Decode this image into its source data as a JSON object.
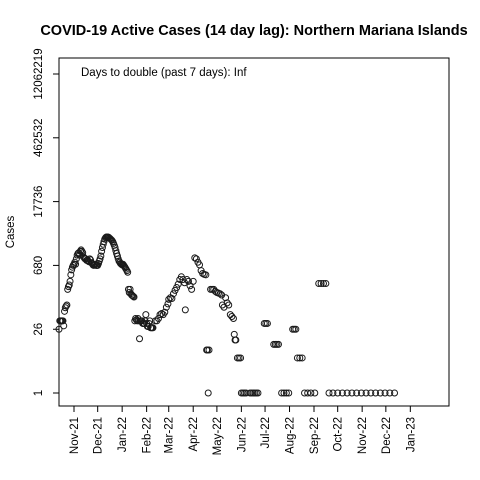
{
  "chart_data": {
    "type": "scatter",
    "title": "COVID-19 Active Cases (14 day lag): Northern Mariana Islands",
    "ylabel": "Cases",
    "xlabel": "",
    "y_scale": "log",
    "annotation": "Days to double (past 7 days): Inf",
    "y_ticks": [
      "1",
      "26",
      "680",
      "17736",
      "462532",
      "12062219"
    ],
    "y_tick_values": [
      1,
      26,
      680,
      17736,
      462532,
      12062219
    ],
    "x_ticks": [
      "Nov-21",
      "Dec-21",
      "Jan-22",
      "Feb-22",
      "Mar-22",
      "Apr-22",
      "May-22",
      "Jun-22",
      "Jul-22",
      "Aug-22",
      "Sep-22",
      "Oct-22",
      "Nov-22",
      "Dec-22",
      "Jan-23"
    ],
    "x_tick_dates": [
      "2021-11-01",
      "2021-12-01",
      "2022-01-01",
      "2022-02-01",
      "2022-03-01",
      "2022-04-01",
      "2022-05-01",
      "2022-06-01",
      "2022-07-01",
      "2022-08-01",
      "2022-09-01",
      "2022-10-01",
      "2022-11-01",
      "2022-12-01",
      "2023-01-01"
    ],
    "xlim": [
      "2021-10-13",
      "2023-02-19"
    ],
    "ylim": [
      1,
      12062219
    ],
    "grid": false,
    "legend": "none",
    "series": [
      {
        "points": [
          [
            "2021-10-13",
            26
          ],
          [
            "2021-10-14",
            40
          ],
          [
            "2021-10-15",
            40
          ],
          [
            "2021-10-16",
            40
          ],
          [
            "2021-10-17",
            40
          ],
          [
            "2021-10-18",
            40
          ],
          [
            "2021-10-19",
            31
          ],
          [
            "2021-10-20",
            65
          ],
          [
            "2021-10-21",
            78
          ],
          [
            "2021-10-22",
            85
          ],
          [
            "2021-10-23",
            90
          ],
          [
            "2021-10-24",
            200
          ],
          [
            "2021-10-25",
            230
          ],
          [
            "2021-10-26",
            250
          ],
          [
            "2021-10-27",
            300
          ],
          [
            "2021-10-28",
            420
          ],
          [
            "2021-10-29",
            540
          ],
          [
            "2021-10-30",
            620
          ],
          [
            "2021-10-31",
            680
          ],
          [
            "2021-11-01",
            720
          ],
          [
            "2021-11-02",
            800
          ],
          [
            "2021-11-03",
            720
          ],
          [
            "2021-11-04",
            950
          ],
          [
            "2021-11-05",
            1150
          ],
          [
            "2021-11-06",
            1250
          ],
          [
            "2021-11-07",
            1300
          ],
          [
            "2021-11-08",
            1150
          ],
          [
            "2021-11-09",
            1400
          ],
          [
            "2021-11-10",
            1500
          ],
          [
            "2021-11-11",
            1400
          ],
          [
            "2021-11-12",
            1300
          ],
          [
            "2021-11-13",
            1050
          ],
          [
            "2021-11-14",
            1000
          ],
          [
            "2021-11-15",
            950
          ],
          [
            "2021-11-16",
            950
          ],
          [
            "2021-11-17",
            880
          ],
          [
            "2021-11-18",
            900
          ],
          [
            "2021-11-19",
            850
          ],
          [
            "2021-11-20",
            820
          ],
          [
            "2021-11-21",
            950
          ],
          [
            "2021-11-22",
            900
          ],
          [
            "2021-11-23",
            780
          ],
          [
            "2021-11-24",
            750
          ],
          [
            "2021-11-25",
            700
          ],
          [
            "2021-11-26",
            680
          ],
          [
            "2021-11-27",
            700
          ],
          [
            "2021-11-28",
            720
          ],
          [
            "2021-11-29",
            680
          ],
          [
            "2021-11-30",
            680
          ],
          [
            "2021-12-01",
            680
          ],
          [
            "2021-12-02",
            750
          ],
          [
            "2021-12-03",
            850
          ],
          [
            "2021-12-04",
            950
          ],
          [
            "2021-12-05",
            1100
          ],
          [
            "2021-12-06",
            1400
          ],
          [
            "2021-12-07",
            1700
          ],
          [
            "2021-12-08",
            2000
          ],
          [
            "2021-12-09",
            2300
          ],
          [
            "2021-12-10",
            2600
          ],
          [
            "2021-12-11",
            2800
          ],
          [
            "2021-12-12",
            2900
          ],
          [
            "2021-12-13",
            2900
          ],
          [
            "2021-12-14",
            2900
          ],
          [
            "2021-12-15",
            2850
          ],
          [
            "2021-12-16",
            2750
          ],
          [
            "2021-12-17",
            2650
          ],
          [
            "2021-12-18",
            2550
          ],
          [
            "2021-12-19",
            2450
          ],
          [
            "2021-12-20",
            2300
          ],
          [
            "2021-12-21",
            2100
          ],
          [
            "2021-12-22",
            1900
          ],
          [
            "2021-12-23",
            1700
          ],
          [
            "2021-12-24",
            1450
          ],
          [
            "2021-12-25",
            1250
          ],
          [
            "2021-12-26",
            1100
          ],
          [
            "2021-12-27",
            950
          ],
          [
            "2021-12-28",
            850
          ],
          [
            "2021-12-29",
            800
          ],
          [
            "2021-12-30",
            750
          ],
          [
            "2021-12-31",
            720
          ],
          [
            "2022-01-01",
            700
          ],
          [
            "2022-01-02",
            720
          ],
          [
            "2022-01-03",
            680
          ],
          [
            "2022-01-04",
            640
          ],
          [
            "2022-01-05",
            600
          ],
          [
            "2022-01-06",
            560
          ],
          [
            "2022-01-07",
            520
          ],
          [
            "2022-01-08",
            480
          ],
          [
            "2022-01-09",
            200
          ],
          [
            "2022-01-10",
            170
          ],
          [
            "2022-01-11",
            200
          ],
          [
            "2022-01-12",
            160
          ],
          [
            "2022-01-13",
            150
          ],
          [
            "2022-01-14",
            145
          ],
          [
            "2022-01-15",
            140
          ],
          [
            "2022-01-16",
            135
          ],
          [
            "2022-01-17",
            40
          ],
          [
            "2022-01-18",
            45
          ],
          [
            "2022-01-19",
            42
          ],
          [
            "2022-01-20",
            40
          ],
          [
            "2022-01-21",
            45
          ],
          [
            "2022-01-22",
            40
          ],
          [
            "2022-01-23",
            16
          ],
          [
            "2022-01-24",
            40
          ],
          [
            "2022-01-25",
            40
          ],
          [
            "2022-01-26",
            40
          ],
          [
            "2022-01-27",
            35
          ],
          [
            "2022-01-28",
            35
          ],
          [
            "2022-01-29",
            35
          ],
          [
            "2022-01-30",
            40
          ],
          [
            "2022-01-31",
            55
          ],
          [
            "2022-02-01",
            35
          ],
          [
            "2022-02-02",
            30
          ],
          [
            "2022-02-03",
            30
          ],
          [
            "2022-02-04",
            35
          ],
          [
            "2022-02-05",
            40
          ],
          [
            "2022-02-06",
            28
          ],
          [
            "2022-02-07",
            28
          ],
          [
            "2022-02-08",
            28
          ],
          [
            "2022-02-09",
            28
          ],
          [
            "2022-02-12",
            40
          ],
          [
            "2022-02-14",
            40
          ],
          [
            "2022-02-16",
            45
          ],
          [
            "2022-02-18",
            55
          ],
          [
            "2022-02-20",
            58
          ],
          [
            "2022-02-22",
            55
          ],
          [
            "2022-02-24",
            62
          ],
          [
            "2022-02-26",
            80
          ],
          [
            "2022-02-28",
            95
          ],
          [
            "2022-03-01",
            120
          ],
          [
            "2022-03-03",
            130
          ],
          [
            "2022-03-05",
            125
          ],
          [
            "2022-03-07",
            160
          ],
          [
            "2022-03-09",
            190
          ],
          [
            "2022-03-11",
            220
          ],
          [
            "2022-03-13",
            260
          ],
          [
            "2022-03-15",
            330
          ],
          [
            "2022-03-17",
            380
          ],
          [
            "2022-03-19",
            330
          ],
          [
            "2022-03-21",
            280
          ],
          [
            "2022-03-22",
            70
          ],
          [
            "2022-03-24",
            330
          ],
          [
            "2022-03-26",
            300
          ],
          [
            "2022-03-28",
            240
          ],
          [
            "2022-03-30",
            200
          ],
          [
            "2022-04-01",
            300
          ],
          [
            "2022-04-03",
            1000
          ],
          [
            "2022-04-05",
            950
          ],
          [
            "2022-04-07",
            800
          ],
          [
            "2022-04-09",
            700
          ],
          [
            "2022-04-11",
            520
          ],
          [
            "2022-04-13",
            450
          ],
          [
            "2022-04-15",
            430
          ],
          [
            "2022-04-17",
            420
          ],
          [
            "2022-04-18",
            9
          ],
          [
            "2022-04-19",
            9
          ],
          [
            "2022-04-20",
            1
          ],
          [
            "2022-04-21",
            9
          ],
          [
            "2022-04-23",
            200
          ],
          [
            "2022-04-25",
            200
          ],
          [
            "2022-04-27",
            200
          ],
          [
            "2022-04-29",
            180
          ],
          [
            "2022-05-01",
            170
          ],
          [
            "2022-05-03",
            165
          ],
          [
            "2022-05-05",
            160
          ],
          [
            "2022-05-07",
            150
          ],
          [
            "2022-05-08",
            90
          ],
          [
            "2022-05-10",
            80
          ],
          [
            "2022-05-12",
            130
          ],
          [
            "2022-05-14",
            100
          ],
          [
            "2022-05-16",
            90
          ],
          [
            "2022-05-18",
            55
          ],
          [
            "2022-05-20",
            50
          ],
          [
            "2022-05-22",
            45
          ],
          [
            "2022-05-23",
            20
          ],
          [
            "2022-05-24",
            15
          ],
          [
            "2022-05-25",
            15
          ],
          [
            "2022-05-27",
            6
          ],
          [
            "2022-05-29",
            6
          ],
          [
            "2022-05-31",
            6
          ],
          [
            "2022-06-01",
            1
          ],
          [
            "2022-06-03",
            1
          ],
          [
            "2022-06-05",
            1
          ],
          [
            "2022-06-07",
            1
          ],
          [
            "2022-06-12",
            1
          ],
          [
            "2022-06-14",
            1
          ],
          [
            "2022-06-16",
            1
          ],
          [
            "2022-06-18",
            1
          ],
          [
            "2022-06-20",
            1
          ],
          [
            "2022-06-22",
            1
          ],
          [
            "2022-06-30",
            35
          ],
          [
            "2022-07-02",
            35
          ],
          [
            "2022-07-04",
            35
          ],
          [
            "2022-07-12",
            12
          ],
          [
            "2022-07-14",
            12
          ],
          [
            "2022-07-16",
            12
          ],
          [
            "2022-07-18",
            12
          ],
          [
            "2022-07-22",
            1
          ],
          [
            "2022-07-25",
            1
          ],
          [
            "2022-07-28",
            1
          ],
          [
            "2022-07-31",
            1
          ],
          [
            "2022-08-05",
            26
          ],
          [
            "2022-08-07",
            26
          ],
          [
            "2022-08-09",
            26
          ],
          [
            "2022-08-11",
            6
          ],
          [
            "2022-08-14",
            6
          ],
          [
            "2022-08-17",
            6
          ],
          [
            "2022-08-20",
            1
          ],
          [
            "2022-08-24",
            1
          ],
          [
            "2022-08-28",
            1
          ],
          [
            "2022-09-02",
            1
          ],
          [
            "2022-09-07",
            270
          ],
          [
            "2022-09-10",
            270
          ],
          [
            "2022-09-13",
            270
          ],
          [
            "2022-09-16",
            270
          ],
          [
            "2022-09-20",
            1
          ],
          [
            "2022-09-25",
            1
          ],
          [
            "2022-10-01",
            1
          ],
          [
            "2022-10-07",
            1
          ],
          [
            "2022-10-13",
            1
          ],
          [
            "2022-10-19",
            1
          ],
          [
            "2022-10-25",
            1
          ],
          [
            "2022-10-31",
            1
          ],
          [
            "2022-11-06",
            1
          ],
          [
            "2022-11-12",
            1
          ],
          [
            "2022-11-18",
            1
          ],
          [
            "2022-11-24",
            1
          ],
          [
            "2022-11-30",
            1
          ],
          [
            "2022-12-06",
            1
          ],
          [
            "2022-12-12",
            1
          ]
        ]
      }
    ]
  }
}
